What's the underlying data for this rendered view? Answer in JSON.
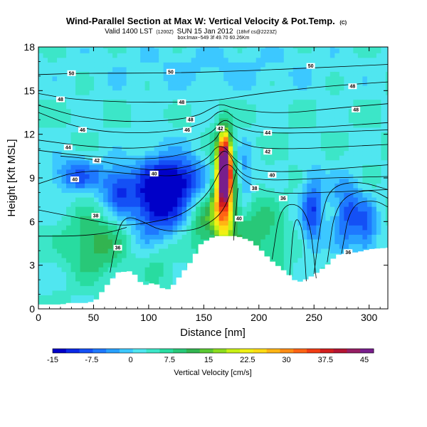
{
  "chart_data": {
    "type": "heatmap",
    "title": "Wind-Parallel Section at Max W: Vertical Velocity & Pot.Temp.",
    "title_suffix": "(C)",
    "subtitle_prefix": "Valid 1400 LST",
    "subtitle_utc": "(1200Z)",
    "subtitle_date": "SUN 15 Jan 2012",
    "subtitle_init": "(18hrf cs@2223Z)",
    "subtitle_line3": "box:lmax~549 3f 49.70 60.26Km",
    "xlabel": "Distance [nm]",
    "ylabel": "Height [Kft MSL]",
    "xlim": [
      0,
      317
    ],
    "ylim": [
      0,
      18
    ],
    "x_ticks": [
      0,
      50,
      100,
      150,
      200,
      250,
      300
    ],
    "y_ticks": [
      0,
      3,
      6,
      9,
      12,
      15,
      18
    ],
    "colorbar": {
      "label": "Vertical Velocity [cm/s]",
      "ticks": [
        "-15",
        "-7.5",
        "0",
        "7.5",
        "15",
        "22.5",
        "30",
        "37.5",
        "45"
      ],
      "range": [
        -15,
        47
      ],
      "colors": [
        "#0000c8",
        "#0a28e6",
        "#1450f5",
        "#1e78ff",
        "#28a0ff",
        "#3cc8ff",
        "#50e6f0",
        "#3ce6c8",
        "#28dca0",
        "#28c878",
        "#32b450",
        "#5ac832",
        "#8cdc1e",
        "#c8f014",
        "#f0f014",
        "#ffdc14",
        "#ffb414",
        "#ff8c14",
        "#ff6414",
        "#f03c14",
        "#d21e1e",
        "#b41432",
        "#961e64",
        "#781e8c"
      ]
    },
    "terrain_kft": [
      [
        0,
        0.3
      ],
      [
        22,
        0.3
      ],
      [
        24,
        0.4
      ],
      [
        45,
        0.4
      ],
      [
        52,
        0.6
      ],
      [
        62,
        1.6
      ],
      [
        72,
        2.5
      ],
      [
        85,
        2.6
      ],
      [
        95,
        1.6
      ],
      [
        105,
        1.8
      ],
      [
        115,
        1.3
      ],
      [
        120,
        1.4
      ],
      [
        128,
        2.2
      ],
      [
        138,
        3.2
      ],
      [
        148,
        4.5
      ],
      [
        160,
        5.0
      ],
      [
        180,
        5.0
      ],
      [
        192,
        4.7
      ],
      [
        200,
        4.2
      ],
      [
        210,
        3.4
      ],
      [
        225,
        2.5
      ],
      [
        235,
        1.8
      ],
      [
        245,
        2.1
      ],
      [
        255,
        2.6
      ],
      [
        265,
        3.2
      ],
      [
        270,
        3.7
      ],
      [
        290,
        3.9
      ],
      [
        300,
        4.1
      ],
      [
        317,
        4.2
      ]
    ],
    "contours": [
      {
        "label": "50",
        "pts": [
          [
            0,
            16.1
          ],
          [
            40,
            16.2
          ],
          [
            120,
            16.2
          ],
          [
            200,
            16.4
          ],
          [
            260,
            16.6
          ],
          [
            317,
            16.8
          ]
        ],
        "labels": [
          [
            30,
            16.2
          ],
          [
            120,
            16.3
          ],
          [
            247,
            16.7
          ]
        ]
      },
      {
        "label": "48",
        "pts": [
          [
            0,
            14.8
          ],
          [
            30,
            14.4
          ],
          [
            80,
            14.2
          ],
          [
            130,
            14.2
          ],
          [
            160,
            14.3
          ],
          [
            200,
            14.8
          ],
          [
            260,
            15.3
          ],
          [
            317,
            15.6
          ]
        ],
        "labels": [
          [
            20,
            14.4
          ],
          [
            130,
            14.2
          ],
          [
            285,
            15.3
          ]
        ]
      },
      {
        "label": "48",
        "pts": [
          [
            0,
            14.0
          ],
          [
            40,
            13.1
          ],
          [
            90,
            12.8
          ],
          [
            140,
            13.1
          ],
          [
            160,
            13.9
          ],
          [
            166,
            14.1
          ],
          [
            180,
            13.7
          ],
          [
            220,
            13.4
          ],
          [
            270,
            13.8
          ],
          [
            317,
            14.1
          ]
        ],
        "labels": [
          [
            138,
            13.0
          ],
          [
            288,
            13.7
          ]
        ]
      },
      {
        "label": "46",
        "pts": [
          [
            0,
            13.5
          ],
          [
            40,
            12.3
          ],
          [
            100,
            12.0
          ],
          [
            150,
            12.6
          ],
          [
            167,
            13.9
          ],
          [
            182,
            12.8
          ],
          [
            220,
            12.3
          ],
          [
            317,
            12.8
          ]
        ],
        "labels": [
          [
            40,
            12.3
          ],
          [
            135,
            12.3
          ]
        ]
      },
      {
        "label": "44",
        "pts": [
          [
            0,
            11.6
          ],
          [
            50,
            11.1
          ],
          [
            100,
            11.0
          ],
          [
            155,
            11.8
          ],
          [
            168,
            13.2
          ],
          [
            180,
            12.4
          ],
          [
            210,
            12.0
          ],
          [
            317,
            12.3
          ]
        ],
        "labels": [
          [
            27,
            11.1
          ],
          [
            208,
            12.1
          ]
        ]
      },
      {
        "label": "42",
        "pts": [
          [
            0,
            10.9
          ],
          [
            40,
            10.5
          ],
          [
            110,
            10.2
          ],
          [
            158,
            11.2
          ],
          [
            168,
            12.7
          ],
          [
            180,
            11.4
          ],
          [
            210,
            10.9
          ],
          [
            317,
            11.3
          ]
        ],
        "labels": [
          [
            165,
            12.4
          ],
          [
            208,
            10.8
          ]
        ]
      },
      {
        "label": "42",
        "pts": [
          [
            20,
            10.5
          ],
          [
            50,
            10.3
          ],
          [
            100,
            9.4
          ],
          [
            150,
            9.9
          ],
          [
            165,
            11.6
          ],
          [
            182,
            9.8
          ],
          [
            215,
            9.3
          ],
          [
            317,
            9.9
          ]
        ],
        "labels": [
          [
            53,
            10.2
          ]
        ]
      },
      {
        "label": "40",
        "pts": [
          [
            0,
            8.6
          ],
          [
            40,
            9.6
          ],
          [
            95,
            9.2
          ],
          [
            130,
            9.1
          ],
          [
            160,
            10.1
          ],
          [
            170,
            11.2
          ],
          [
            183,
            9.1
          ],
          [
            210,
            8.8
          ],
          [
            260,
            9.0
          ],
          [
            317,
            9.1
          ]
        ],
        "labels": [
          [
            33,
            8.9
          ],
          [
            105,
            9.3
          ],
          [
            212,
            9.2
          ]
        ]
      },
      {
        "label": "38",
        "pts": [
          [
            0,
            6.8
          ],
          [
            40,
            6.2
          ],
          [
            55,
            6.0
          ],
          [
            75,
            5.7
          ],
          [
            100,
            5.9
          ],
          [
            130,
            6.4
          ],
          [
            155,
            7.9
          ],
          [
            170,
            10.4
          ],
          [
            185,
            8.8
          ],
          [
            210,
            7.9
          ],
          [
            260,
            8.0
          ],
          [
            317,
            8.2
          ]
        ],
        "labels": [
          [
            52,
            6.4
          ],
          [
            196,
            8.3
          ]
        ]
      },
      {
        "label": "36",
        "pts": [
          [
            0,
            5.0
          ],
          [
            35,
            5.0
          ],
          [
            62,
            5.2
          ],
          [
            80,
            5.6
          ]
        ],
        "labels": [
          [
            222,
            7.6
          ]
        ]
      },
      {
        "label": "36",
        "pts": [
          [
            65,
            2.5
          ],
          [
            72,
            5.5
          ],
          [
            80,
            6.4
          ],
          [
            95,
            6.0
          ],
          [
            110,
            5.4
          ],
          [
            130,
            5.3
          ],
          [
            150,
            5.6
          ],
          [
            170,
            6.8
          ],
          [
            180,
            9.6
          ]
        ],
        "labels": [
          [
            72,
            4.2
          ]
        ]
      },
      {
        "label": "40",
        "pts": [
          [
            177,
            4.7
          ],
          [
            181,
            8.3
          ]
        ],
        "labels": [
          [
            182,
            6.2
          ]
        ]
      },
      {
        "label": "36",
        "pts": [
          [
            250,
            2.4
          ],
          [
            257,
            6.5
          ],
          [
            265,
            8.4
          ],
          [
            290,
            8.8
          ],
          [
            317,
            8.2
          ]
        ],
        "labels": [
          [
            281,
            3.9
          ]
        ]
      },
      {
        "label": "",
        "pts": [
          [
            262,
            3.2
          ],
          [
            270,
            7.5
          ],
          [
            300,
            8.3
          ],
          [
            317,
            7.6
          ]
        ],
        "labels": []
      },
      {
        "label": "",
        "pts": [
          [
            275,
            3.8
          ],
          [
            283,
            7.2
          ],
          [
            305,
            7.5
          ],
          [
            317,
            7.0
          ]
        ],
        "labels": []
      },
      {
        "label": "",
        "pts": [
          [
            212,
            3.4
          ],
          [
            220,
            7.4
          ],
          [
            245,
            6.9
          ],
          [
            252,
            2.1
          ]
        ],
        "labels": []
      },
      {
        "label": "",
        "pts": [
          [
            228,
            2.3
          ],
          [
            232,
            6.5
          ],
          [
            240,
            5.6
          ],
          [
            243,
            1.9
          ]
        ],
        "labels": []
      }
    ]
  }
}
